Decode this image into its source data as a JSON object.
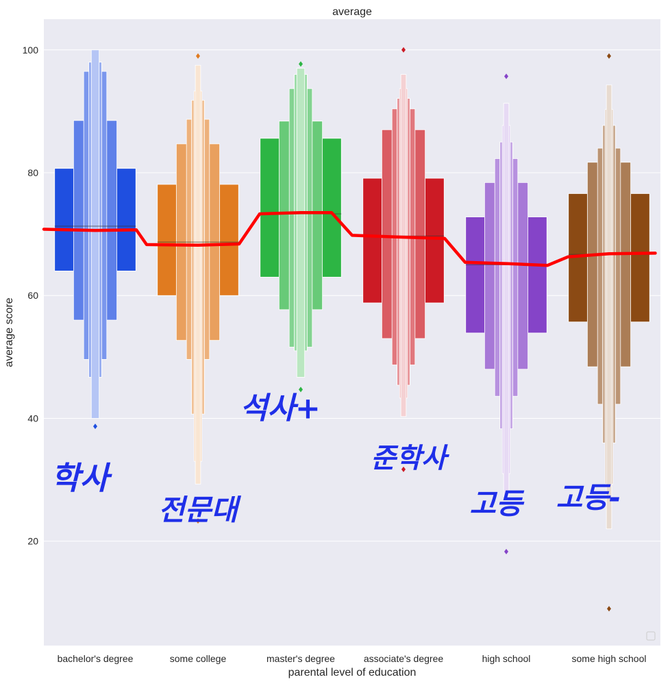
{
  "chart_data": {
    "type": "boxen",
    "title": "average",
    "xlabel": "parental level of education",
    "ylabel": "average score",
    "ylim": [
      3,
      105
    ],
    "yticks": [
      20,
      40,
      60,
      80,
      100
    ],
    "grid": true,
    "categories": [
      {
        "name": "bachelor's degree",
        "color": "#1f4fe0",
        "median": 71.3,
        "boxes": [
          [
            64.0,
            80.7
          ],
          [
            56.0,
            88.5
          ],
          [
            49.6,
            96.5
          ],
          [
            46.7,
            98.0
          ],
          [
            40.0,
            100.0
          ]
        ],
        "outliers": [
          38.7
        ]
      },
      {
        "name": "some college",
        "color": "#e07b20",
        "median": 68.7,
        "boxes": [
          [
            60.0,
            78.1
          ],
          [
            52.7,
            84.7
          ],
          [
            49.6,
            88.7
          ],
          [
            40.7,
            91.8
          ],
          [
            33.0,
            93.3
          ],
          [
            29.3,
            97.5
          ]
        ],
        "outliers": [
          99.0,
          23.3
        ]
      },
      {
        "name": "master's degree",
        "color": "#2db544",
        "median": 73.3,
        "boxes": [
          [
            63.0,
            85.6
          ],
          [
            57.7,
            88.4
          ],
          [
            51.6,
            93.7
          ],
          [
            51.0,
            96.0
          ],
          [
            46.7,
            97.0
          ]
        ],
        "outliers": [
          97.7,
          44.7
        ]
      },
      {
        "name": "associate's degree",
        "color": "#cc1b25",
        "median": 69.7,
        "boxes": [
          [
            58.8,
            79.1
          ],
          [
            53.0,
            87.0
          ],
          [
            48.7,
            90.4
          ],
          [
            45.4,
            92.1
          ],
          [
            43.3,
            93.7
          ],
          [
            40.3,
            96.0
          ]
        ],
        "outliers": [
          100.0,
          31.7
        ]
      },
      {
        "name": "high school",
        "color": "#8544c8",
        "median": 65.0,
        "boxes": [
          [
            53.9,
            72.8
          ],
          [
            48.0,
            78.4
          ],
          [
            43.6,
            82.3
          ],
          [
            38.3,
            85.0
          ],
          [
            31.0,
            87.7
          ],
          [
            27.3,
            91.3
          ]
        ],
        "outliers": [
          95.7,
          18.3
        ]
      },
      {
        "name": "some high school",
        "color": "#8b4a14",
        "median": 66.7,
        "boxes": [
          [
            55.7,
            76.6
          ],
          [
            48.4,
            81.7
          ],
          [
            42.3,
            84.0
          ],
          [
            36.0,
            87.7
          ],
          [
            29.3,
            90.3
          ],
          [
            22.0,
            94.3
          ]
        ],
        "outliers": [
          99.0,
          9.0
        ]
      }
    ],
    "trend_line": {
      "color": "#ff0000",
      "points": [
        [
          -0.5,
          70.8
        ],
        [
          0.0,
          70.6
        ],
        [
          0.4,
          70.7
        ],
        [
          0.5,
          68.3
        ],
        [
          1.0,
          68.2
        ],
        [
          1.4,
          68.4
        ],
        [
          1.6,
          73.3
        ],
        [
          2.0,
          73.5
        ],
        [
          2.3,
          73.5
        ],
        [
          2.5,
          69.8
        ],
        [
          3.0,
          69.5
        ],
        [
          3.4,
          69.3
        ],
        [
          3.6,
          65.4
        ],
        [
          4.0,
          65.2
        ],
        [
          4.4,
          64.9
        ],
        [
          4.6,
          66.3
        ],
        [
          5.0,
          66.8
        ],
        [
          5.45,
          66.9
        ]
      ]
    },
    "annotations": [
      {
        "text": "학사",
        "category": 0,
        "offset": -0.15,
        "y": 28.5,
        "color": "#1f2fe8",
        "size": 46
      },
      {
        "text": "전문대",
        "category": 1,
        "offset": 0.0,
        "y": 23.5,
        "color": "#1f2fe8",
        "size": 42
      },
      {
        "text": "석사+",
        "category": 2,
        "offset": -0.2,
        "y": 40.0,
        "color": "#1f2fe8",
        "size": 44
      },
      {
        "text": "준학사",
        "category": 3,
        "offset": 0.05,
        "y": 32.0,
        "color": "#1f2fe8",
        "size": 40
      },
      {
        "text": "고등",
        "category": 4,
        "offset": -0.1,
        "y": 24.5,
        "color": "#1f2fe8",
        "size": 42
      },
      {
        "text": "고등-",
        "category": 5,
        "offset": -0.2,
        "y": 25.5,
        "color": "#1f2fe8",
        "size": 42
      }
    ]
  }
}
